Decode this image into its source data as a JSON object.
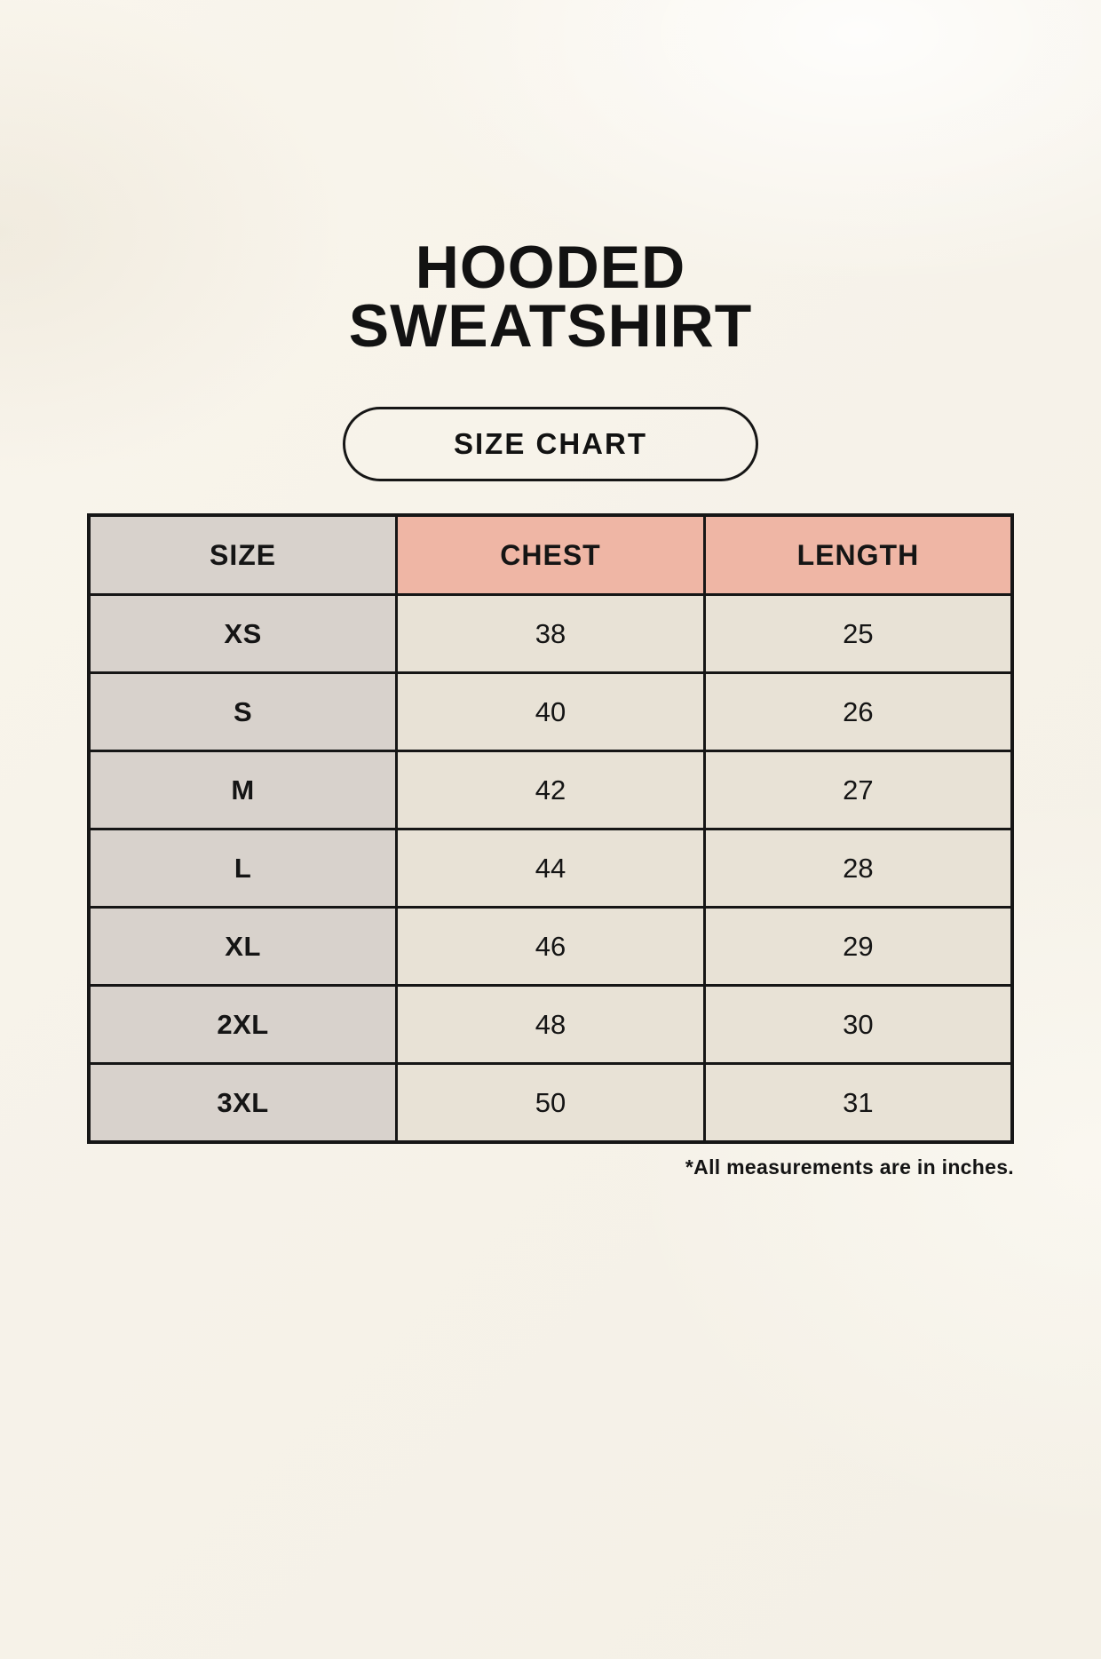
{
  "header": {
    "title_line1": "HOODED",
    "title_line2": "SWEATSHIRT",
    "badge_label": "SIZE CHART"
  },
  "footer": {
    "note": "*All measurements are in inches."
  },
  "colors": {
    "background": "#f6f2e9",
    "size_column_bg": "#d8d2cc",
    "header_accent_bg": "#efb6a5",
    "data_cell_bg": "#e8e2d6",
    "border": "#161616",
    "text": "#121212"
  },
  "chart_data": {
    "type": "table",
    "title": "HOODED SWEATSHIRT",
    "subtitle": "SIZE CHART",
    "units": "inches",
    "columns": [
      "SIZE",
      "CHEST",
      "LENGTH"
    ],
    "rows": [
      [
        "XS",
        38,
        25
      ],
      [
        "S",
        40,
        26
      ],
      [
        "M",
        42,
        27
      ],
      [
        "L",
        44,
        28
      ],
      [
        "XL",
        46,
        29
      ],
      [
        "2XL",
        48,
        30
      ],
      [
        "3XL",
        50,
        31
      ]
    ],
    "note": "*All measurements are in inches."
  }
}
